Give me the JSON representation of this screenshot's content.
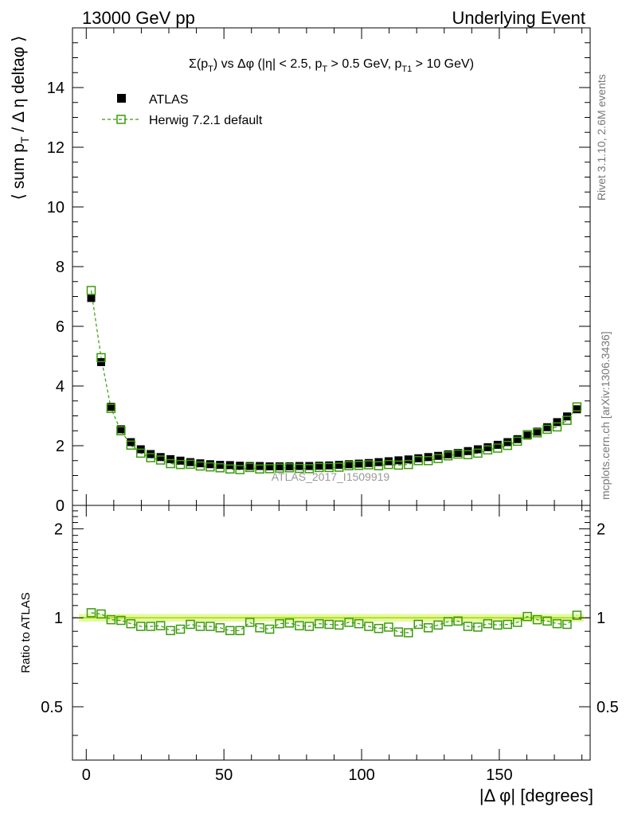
{
  "header": {
    "left": "13000 GeV pp",
    "right": "Underlying Event",
    "title": "Σ(p_T) vs Δφ (|η| < 2.5, p_T > 0.5 GeV, p_T1 > 10 GeV)"
  },
  "side_labels": {
    "rivet": "Rivet 3.1.10,  2.6M events",
    "mcplots": "mcplots.cern.ch [arXiv:1306.3436]",
    "watermark": "ATLAS_2017_I1509919"
  },
  "legend": {
    "data_label": "ATLAS",
    "mc_label": "Herwig 7.2.1 default",
    "placement": "top-left"
  },
  "colors": {
    "data": "#000000",
    "mc": "#3a9a0a",
    "band": "#e5f9a0",
    "ratio_line": "#a8d800"
  },
  "chart_data": [
    {
      "type": "scatter",
      "title": "Σ(p_T) vs Δφ (|η| < 2.5, p_T > 0.5 GeV, p_T1 > 10 GeV)",
      "ylabel": "⟨ sum p_T / Δ η deltaφ ⟩",
      "xlim": [
        -5,
        183
      ],
      "ylim": [
        0,
        16
      ],
      "yticks": [
        0,
        2,
        4,
        6,
        8,
        10,
        12,
        14
      ],
      "x": [
        1.8,
        5.4,
        9,
        12.6,
        16.2,
        19.8,
        23.4,
        27,
        30.6,
        34.2,
        37.8,
        41.4,
        45,
        48.6,
        52.2,
        55.8,
        59.4,
        63,
        66.6,
        70.2,
        73.8,
        77.4,
        81,
        84.6,
        88.2,
        91.8,
        95.4,
        99,
        102.6,
        106.2,
        109.8,
        113.4,
        117,
        120.6,
        124.2,
        127.8,
        131.4,
        135,
        138.6,
        142.2,
        145.8,
        149.4,
        153,
        156.6,
        160.2,
        163.8,
        167.4,
        171,
        174.6,
        178.2
      ],
      "series": [
        {
          "name": "ATLAS",
          "values": [
            6.95,
            4.8,
            3.3,
            2.55,
            2.12,
            1.88,
            1.72,
            1.62,
            1.55,
            1.5,
            1.45,
            1.41,
            1.38,
            1.36,
            1.35,
            1.33,
            1.32,
            1.32,
            1.31,
            1.31,
            1.31,
            1.32,
            1.32,
            1.33,
            1.34,
            1.36,
            1.38,
            1.4,
            1.42,
            1.45,
            1.48,
            1.51,
            1.54,
            1.58,
            1.62,
            1.66,
            1.71,
            1.76,
            1.82,
            1.88,
            1.95,
            2.03,
            2.12,
            2.22,
            2.34,
            2.47,
            2.62,
            2.79,
            2.98,
            3.22
          ]
        },
        {
          "name": "Herwig 7.2.1 default",
          "values": [
            7.2,
            4.95,
            3.25,
            2.5,
            2.02,
            1.75,
            1.6,
            1.52,
            1.4,
            1.37,
            1.38,
            1.32,
            1.29,
            1.26,
            1.22,
            1.2,
            1.27,
            1.22,
            1.23,
            1.25,
            1.26,
            1.24,
            1.23,
            1.27,
            1.27,
            1.28,
            1.33,
            1.34,
            1.36,
            1.33,
            1.37,
            1.35,
            1.37,
            1.5,
            1.5,
            1.57,
            1.66,
            1.72,
            1.7,
            1.75,
            1.86,
            1.92,
            2.01,
            2.15,
            2.37,
            2.43,
            2.55,
            2.63,
            2.85,
            3.3
          ]
        }
      ]
    },
    {
      "type": "scatter",
      "xlabel": "|Δ φ| [degrees]",
      "ylabel": "Ratio to ATLAS",
      "xlim": [
        -5,
        183
      ],
      "xticks": [
        0,
        50,
        100,
        150
      ],
      "ylim": [
        0.33,
        2.4
      ],
      "yscale": "log",
      "yticks": [
        0.5,
        1,
        2
      ],
      "x": [
        1.8,
        5.4,
        9,
        12.6,
        16.2,
        19.8,
        23.4,
        27,
        30.6,
        34.2,
        37.8,
        41.4,
        45,
        48.6,
        52.2,
        55.8,
        59.4,
        63,
        66.6,
        70.2,
        73.8,
        77.4,
        81,
        84.6,
        88.2,
        91.8,
        95.4,
        99,
        102.6,
        106.2,
        109.8,
        113.4,
        117,
        120.6,
        124.2,
        127.8,
        131.4,
        135,
        138.6,
        142.2,
        145.8,
        149.4,
        153,
        156.6,
        160.2,
        163.8,
        167.4,
        171,
        174.6,
        178.2
      ],
      "series": [
        {
          "name": "Herwig 7.2.1 default",
          "values": [
            1.04,
            1.03,
            0.985,
            0.98,
            0.955,
            0.935,
            0.935,
            0.94,
            0.905,
            0.915,
            0.95,
            0.935,
            0.935,
            0.925,
            0.905,
            0.905,
            0.965,
            0.925,
            0.915,
            0.955,
            0.96,
            0.94,
            0.935,
            0.955,
            0.95,
            0.945,
            0.965,
            0.955,
            0.935,
            0.92,
            0.93,
            0.895,
            0.89,
            0.95,
            0.925,
            0.945,
            0.97,
            0.975,
            0.935,
            0.93,
            0.955,
            0.945,
            0.95,
            0.965,
            1.01,
            0.985,
            0.975,
            0.955,
            0.95,
            1.02
          ]
        }
      ]
    }
  ]
}
